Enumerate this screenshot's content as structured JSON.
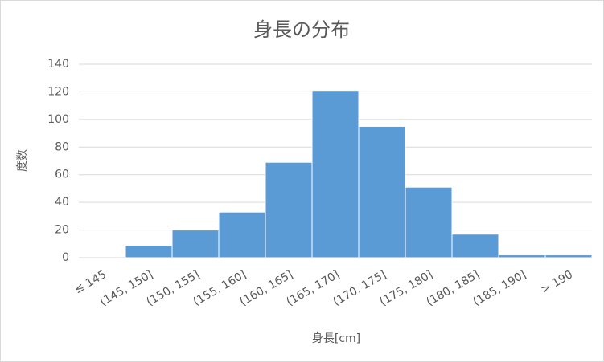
{
  "chart_data": {
    "type": "bar",
    "title": "身長の分布",
    "x_label": "身長[cm]",
    "y_label": "度数",
    "categories": [
      "≤ 145",
      "(145, 150]",
      "(150, 155]",
      "(155, 160]",
      "(160, 165]",
      "(165, 170]",
      "(170, 175]",
      "(175, 180]",
      "(180, 185]",
      "(185, 190]",
      "> 190"
    ],
    "values": [
      0,
      9,
      20,
      33,
      69,
      121,
      95,
      51,
      17,
      2,
      2
    ],
    "color": "#5b9bd5",
    "ylim": [
      0,
      140
    ],
    "yticks": [
      0,
      20,
      40,
      60,
      80,
      100,
      120,
      140
    ],
    "grid": true
  }
}
